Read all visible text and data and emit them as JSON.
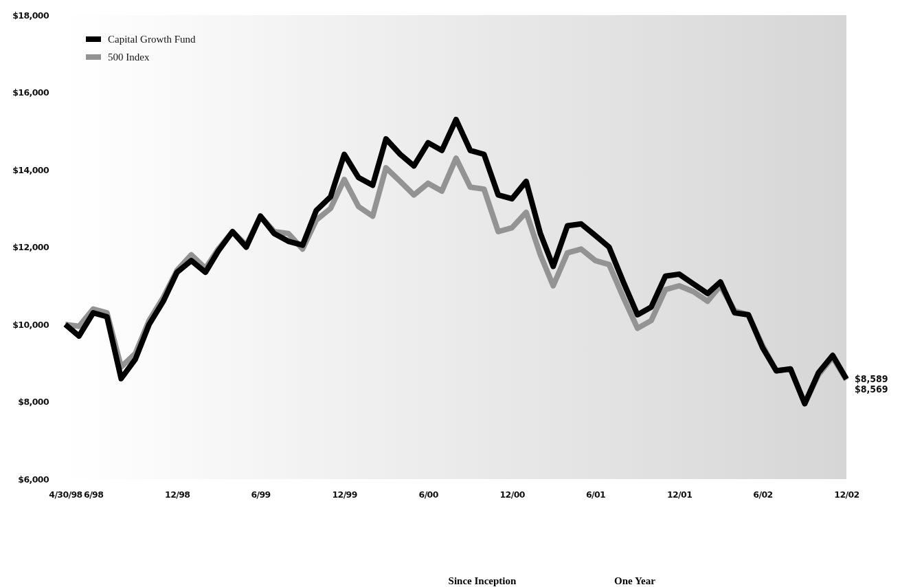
{
  "chart_data": {
    "type": "line",
    "x": [
      "1998-04",
      "1998-05",
      "1998-06",
      "1998-07",
      "1998-08",
      "1998-09",
      "1998-10",
      "1998-11",
      "1998-12",
      "1999-01",
      "1999-02",
      "1999-03",
      "1999-04",
      "1999-05",
      "1999-06",
      "1999-07",
      "1999-08",
      "1999-09",
      "1999-10",
      "1999-11",
      "1999-12",
      "2000-01",
      "2000-02",
      "2000-03",
      "2000-04",
      "2000-05",
      "2000-06",
      "2000-07",
      "2000-08",
      "2000-09",
      "2000-10",
      "2000-11",
      "2000-12",
      "2001-01",
      "2001-02",
      "2001-03",
      "2001-04",
      "2001-05",
      "2001-06",
      "2001-07",
      "2001-08",
      "2001-09",
      "2001-10",
      "2001-11",
      "2001-12",
      "2002-01",
      "2002-02",
      "2002-03",
      "2002-04",
      "2002-05",
      "2002-06",
      "2002-07",
      "2002-08",
      "2002-09",
      "2002-10",
      "2002-11",
      "2002-12"
    ],
    "series": [
      {
        "name": "Capital Growth Fund",
        "color": "#000000",
        "values": [
          10000,
          9700,
          10300,
          10200,
          8600,
          9100,
          10000,
          10600,
          11350,
          11650,
          11350,
          11900,
          12400,
          12000,
          12800,
          12350,
          12150,
          12050,
          12950,
          13300,
          14400,
          13800,
          13600,
          14800,
          14400,
          14100,
          14700,
          14500,
          15300,
          14500,
          14400,
          13350,
          13250,
          13700,
          12350,
          11500,
          12550,
          12600,
          12300,
          12000,
          11100,
          10250,
          10450,
          11250,
          11300,
          11050,
          10800,
          11100,
          10300,
          10250,
          9400,
          8800,
          8850,
          7950,
          8750,
          9200,
          8589
        ]
      },
      {
        "name": "500 Index",
        "color": "#939393",
        "values": [
          10000,
          9950,
          10400,
          10300,
          8900,
          9250,
          10100,
          10700,
          11400,
          11800,
          11450,
          11950,
          12400,
          12050,
          12800,
          12400,
          12350,
          11950,
          12700,
          13000,
          13750,
          13050,
          12800,
          14050,
          13700,
          13350,
          13650,
          13450,
          14300,
          13550,
          13500,
          12400,
          12500,
          12900,
          11800,
          11000,
          11850,
          11950,
          11650,
          11550,
          10700,
          9900,
          10100,
          10900,
          11000,
          10850,
          10600,
          11000,
          10350,
          10250,
          9450,
          8800,
          8850,
          7950,
          8700,
          9150,
          8569
        ]
      }
    ],
    "xlim": [
      "1998-04",
      "2002-12"
    ],
    "xticks": [
      {
        "value": "1998-04",
        "label": "4/30/98"
      },
      {
        "value": "1998-06",
        "label": "6/98"
      },
      {
        "value": "1998-12",
        "label": "12/98"
      },
      {
        "value": "1999-06",
        "label": "6/99"
      },
      {
        "value": "1999-12",
        "label": "12/99"
      },
      {
        "value": "2000-06",
        "label": "6/00"
      },
      {
        "value": "2000-12",
        "label": "12/00"
      },
      {
        "value": "2001-06",
        "label": "6/01"
      },
      {
        "value": "2001-12",
        "label": "12/01"
      },
      {
        "value": "2002-06",
        "label": "6/02"
      },
      {
        "value": "2002-12",
        "label": "12/02"
      }
    ],
    "ylim": [
      6000,
      18000
    ],
    "yticks": [
      {
        "value": 6000,
        "label": "$6,000"
      },
      {
        "value": 8000,
        "label": "$8,000"
      },
      {
        "value": 10000,
        "label": "$10,000"
      },
      {
        "value": 12000,
        "label": "$12,000"
      },
      {
        "value": 14000,
        "label": "$14,000"
      },
      {
        "value": 16000,
        "label": "$16,000"
      },
      {
        "value": 18000,
        "label": "$18,000"
      }
    ],
    "legend": "top left",
    "grid": false,
    "marker": "none",
    "line_style": "solid",
    "annotations": [
      {
        "text": "$8,589",
        "x": "2002-12",
        "y": 8589
      },
      {
        "text": "$8,569",
        "x": "2002-12",
        "y": 8569
      },
      "Since Inception",
      "One Year"
    ]
  }
}
